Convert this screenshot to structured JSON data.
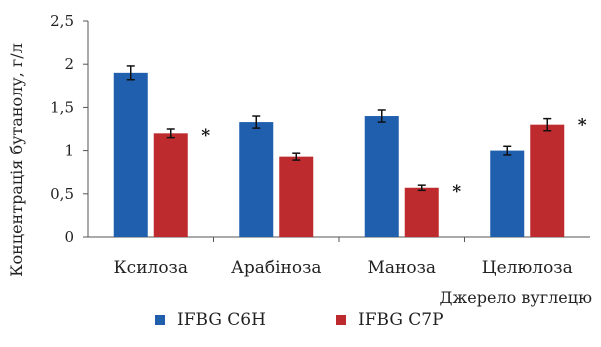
{
  "chart_data": {
    "type": "bar",
    "categories": [
      "Ксилоза",
      "Арабіноза",
      "Маноза",
      "Целюлоза"
    ],
    "series": [
      {
        "name": "IFBG C6H",
        "color": "#1f5fae",
        "values": [
          1.9,
          1.33,
          1.4,
          1.0
        ],
        "errors": [
          0.08,
          0.07,
          0.07,
          0.05
        ]
      },
      {
        "name": "IFBG C7P",
        "color": "#be2b2f",
        "values": [
          1.2,
          0.93,
          0.57,
          1.3
        ],
        "errors": [
          0.05,
          0.04,
          0.03,
          0.07
        ]
      }
    ],
    "significance": [
      {
        "category": "Ксилоза",
        "label": "*"
      },
      {
        "category": "Маноза",
        "label": "*"
      },
      {
        "category": "Целюлоза",
        "label": "*"
      }
    ],
    "ylim": [
      0,
      2.5
    ],
    "yticks": [
      "0",
      "0,5",
      "1",
      "1,5",
      "2",
      "2,5"
    ],
    "ytick_values": [
      0,
      0.5,
      1,
      1.5,
      2,
      2.5
    ],
    "xlabel": "Джерело вуглецю",
    "ylabel": "Концентрація бутанолу, г/л",
    "legend_position": "bottom",
    "grid": false
  }
}
